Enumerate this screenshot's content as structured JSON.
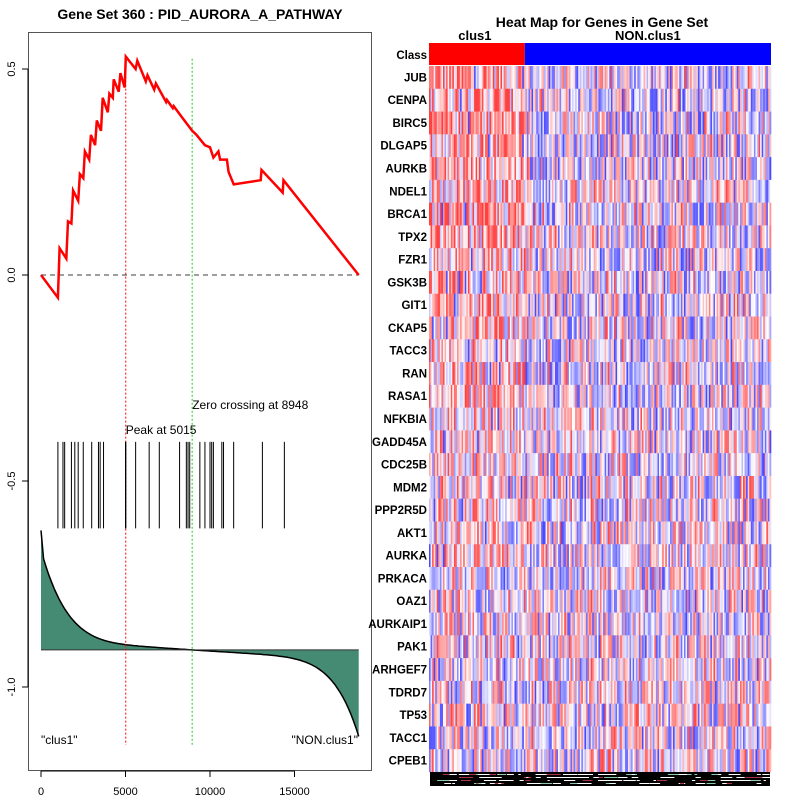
{
  "chart_data": [
    {
      "type": "line",
      "name": "enrichment-plot",
      "title": "Gene Set  360 : PID_AURORA_A_PATHWAY",
      "xlabel": "",
      "ylabel": "",
      "xlim": [
        0,
        18800
      ],
      "ylim": [
        -1.18,
        0.6
      ],
      "x_ticks": [
        0,
        5000,
        10000,
        15000
      ],
      "x_tick_labels": [
        "0",
        "5000",
        "10000",
        "15000"
      ],
      "y_ticks": [
        0.5,
        0.0,
        -0.5,
        -1.0
      ],
      "y_tick_labels": [
        "0.5",
        "0.0",
        "-0.5",
        "-1.0"
      ],
      "grid": false,
      "colors": {
        "running_es": "#ff0000",
        "peak_line": "#ff0000",
        "zero_crossing_line": "#66dd66",
        "baseline": "#666666",
        "hits": "#000000",
        "ranked_metric_fill": "#458b74",
        "ranked_metric_line": "#000000"
      },
      "running_es": {
        "x": [
          0,
          1000,
          1100,
          1500,
          1600,
          1800,
          1900,
          2200,
          2300,
          2500,
          2600,
          2850,
          2950,
          3200,
          3300,
          3550,
          3650,
          3950,
          4050,
          4250,
          4300,
          4600,
          4700,
          4950,
          5015,
          5600,
          5700,
          6200,
          6300,
          6700,
          6800,
          7400,
          7450,
          7800,
          7850,
          8300,
          8948,
          9200,
          9700,
          10000,
          10200,
          10500,
          10600,
          11000,
          11100,
          11300,
          11400,
          13000,
          13050,
          14300,
          14350,
          18800
        ],
        "y": [
          0.0,
          -0.055,
          0.065,
          0.04,
          0.13,
          0.125,
          0.205,
          0.18,
          0.245,
          0.235,
          0.3,
          0.28,
          0.34,
          0.315,
          0.375,
          0.35,
          0.43,
          0.395,
          0.44,
          0.43,
          0.475,
          0.445,
          0.49,
          0.455,
          0.53,
          0.5,
          0.52,
          0.47,
          0.485,
          0.45,
          0.465,
          0.42,
          0.425,
          0.405,
          0.41,
          0.385,
          0.35,
          0.34,
          0.315,
          0.31,
          0.285,
          0.3,
          0.28,
          0.28,
          0.25,
          0.23,
          0.22,
          0.23,
          0.255,
          0.2,
          0.23,
          0.0
        ]
      },
      "baseline_y": 0.0,
      "hits_x": [
        1000,
        1300,
        1400,
        1800,
        2000,
        2200,
        2500,
        3000,
        3400,
        3500,
        3700,
        5000,
        5020,
        5600,
        6400,
        7000,
        8200,
        8600,
        8700,
        8800,
        9400,
        9700,
        10000,
        10100,
        10200,
        10700,
        10800,
        11400,
        13100,
        14400
      ],
      "hits_range": [
        -0.405,
        -0.615
      ],
      "ranked_metric": {
        "zero_level": -0.91,
        "start_value": -0.62,
        "end_value": -1.12,
        "crossing_x": 8948
      },
      "annotations": [
        {
          "text": "Peak at 5015",
          "x": 5015,
          "type": "vline",
          "color": "#ff0000"
        },
        {
          "text": "Zero crossing at 8948",
          "x": 8948,
          "type": "vline",
          "color": "#66dd66"
        }
      ],
      "corner_labels": {
        "left": "\"clus1\"",
        "right": "\"NON.clus1\""
      }
    },
    {
      "type": "heatmap",
      "name": "gene-heatmap",
      "title": "Heat Map for Genes in Gene Set",
      "class_row_label": "Class",
      "classes": [
        {
          "name": "clus1",
          "color": "#ff0000",
          "fraction": 0.28
        },
        {
          "name": "NON.clus1",
          "color": "#0000ff",
          "fraction": 0.72
        }
      ],
      "genes": [
        "JUB",
        "CENPA",
        "BIRC5",
        "DLGAP5",
        "AURKB",
        "NDEL1",
        "BRCA1",
        "TPX2",
        "FZR1",
        "GSK3B",
        "GIT1",
        "CKAP5",
        "TACC3",
        "RAN",
        "RASA1",
        "NFKBIA",
        "GADD45A",
        "CDC25B",
        "MDM2",
        "PPP2R5D",
        "AKT1",
        "AURKA",
        "PRKACA",
        "OAZ1",
        "AURKAIP1",
        "PAK1",
        "ARHGEF7",
        "TDRD7",
        "TP53",
        "TACC1",
        "CPEB1"
      ],
      "color_scale": {
        "low": "#0000ff",
        "mid": "#ffffff",
        "high": "#ff0000"
      }
    }
  ]
}
